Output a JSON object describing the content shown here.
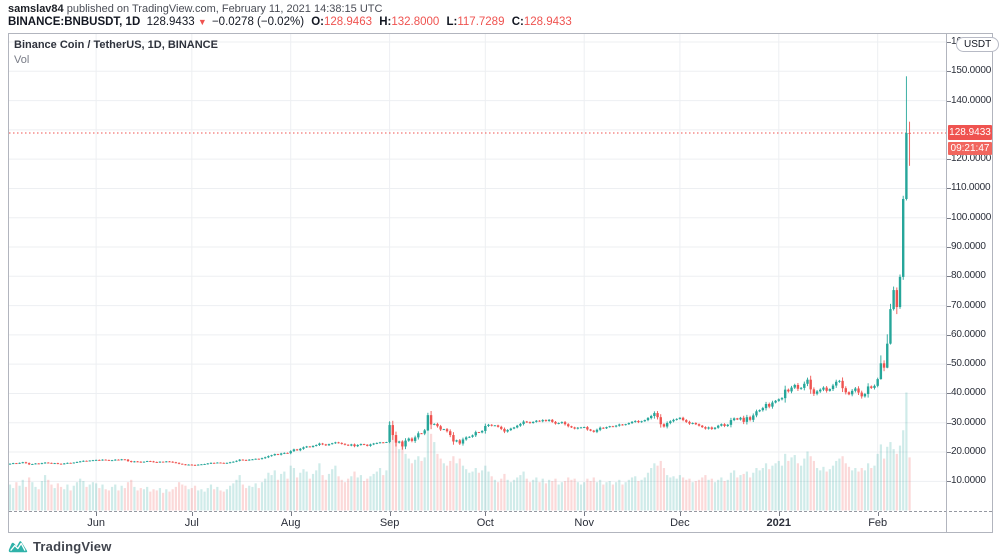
{
  "header": {
    "author": "samslav84",
    "published_text": " published on TradingView.com, February 11, 2021 14:38:15 UTC",
    "symbol": "BINANCE:BNBUSDT, 1D",
    "last_price": "128.9433",
    "direction_icon": "▼",
    "change_text": "−0.0278 (−0.02%)",
    "o_label": "O:",
    "o_value": "128.9463",
    "h_label": "H:",
    "h_value": "132.8000",
    "l_label": "L:",
    "l_value": "117.7289",
    "c_label": "C:",
    "c_value": "128.9433"
  },
  "chart": {
    "pane_title": "Binance Coin / TetherUS, 1D, BINANCE",
    "indicator_label": "Vol",
    "price_axis": {
      "unit_button": "USDT",
      "last_price_label": "128.9433",
      "countdown_label": "09:21:47",
      "tick_labels": [
        {
          "p": 160,
          "label": "160.0000"
        },
        {
          "p": 150,
          "label": "150.0000"
        },
        {
          "p": 140,
          "label": "140.0000"
        },
        {
          "p": 120,
          "label": "120.0000"
        },
        {
          "p": 110,
          "label": "110.0000"
        },
        {
          "p": 100,
          "label": "100.0000"
        },
        {
          "p": 90,
          "label": "90.0000"
        },
        {
          "p": 80,
          "label": "80.0000"
        },
        {
          "p": 70,
          "label": "70.0000"
        },
        {
          "p": 60,
          "label": "60.0000"
        },
        {
          "p": 50,
          "label": "50.0000"
        },
        {
          "p": 40,
          "label": "40.0000"
        },
        {
          "p": 30,
          "label": "30.0000"
        },
        {
          "p": 20,
          "label": "20.0000"
        },
        {
          "p": 10,
          "label": "10.0000"
        }
      ],
      "grid_prices": [
        10,
        20,
        30,
        40,
        50,
        60,
        70,
        80,
        90,
        100,
        110,
        120,
        130,
        140,
        150,
        160
      ]
    },
    "time_axis": {
      "ticks": [
        {
          "label": "Jun",
          "day": 27,
          "bold": false
        },
        {
          "label": "Jul",
          "day": 57,
          "bold": false
        },
        {
          "label": "Aug",
          "day": 88,
          "bold": false
        },
        {
          "label": "Sep",
          "day": 119,
          "bold": false
        },
        {
          "label": "Oct",
          "day": 149,
          "bold": false
        },
        {
          "label": "Nov",
          "day": 180,
          "bold": false
        },
        {
          "label": "Dec",
          "day": 210,
          "bold": false
        },
        {
          "label": "2021",
          "day": 241,
          "bold": true
        },
        {
          "label": "Feb",
          "day": 272,
          "bold": false
        }
      ]
    },
    "watermark": "TradingView"
  },
  "colors": {
    "up": "#26a69a",
    "down": "#ef5350",
    "vol_up": "rgba(38,166,154,0.22)",
    "vol_down": "rgba(239,83,80,0.22)",
    "grid": "#edeff2",
    "price_line": "#ef5350",
    "badge_bg": "#ef5350"
  },
  "chart_data": {
    "type": "candlestick",
    "symbol": "BINANCE:BNBUSDT",
    "title": "Binance Coin / TetherUS, 1D, BINANCE",
    "interval": "1D",
    "currency": "USDT",
    "date_start": "2020-05-05",
    "date_end": "2021-02-11",
    "visible_price_range": [
      0,
      163
    ],
    "volume_units": "relative_0_100",
    "last_candle": {
      "open": 128.9463,
      "high": 132.8,
      "low": 117.7289,
      "close": 128.9433,
      "change": -0.0278,
      "change_pct": "-0.02%"
    },
    "countdown_to_close": "09:21:47",
    "days": [
      [
        16.0,
        22
      ],
      [
        16.2,
        19
      ],
      [
        16.1,
        24
      ],
      [
        16.3,
        21
      ],
      [
        16.5,
        26
      ],
      [
        16.2,
        20
      ],
      [
        15.8,
        28
      ],
      [
        15.9,
        24
      ],
      [
        16.1,
        20
      ],
      [
        16.0,
        18
      ],
      [
        16.2,
        25
      ],
      [
        16.4,
        30
      ],
      [
        16.3,
        26
      ],
      [
        16.1,
        22
      ],
      [
        16.2,
        19
      ],
      [
        16.0,
        23
      ],
      [
        15.9,
        20
      ],
      [
        16.1,
        18
      ],
      [
        16.3,
        22
      ],
      [
        16.2,
        17
      ],
      [
        16.4,
        21
      ],
      [
        16.6,
        24
      ],
      [
        16.8,
        27
      ],
      [
        17.0,
        25
      ],
      [
        16.9,
        20
      ],
      [
        17.1,
        22
      ],
      [
        17.2,
        24
      ],
      [
        17.3,
        23
      ],
      [
        17.2,
        19
      ],
      [
        17.4,
        22
      ],
      [
        17.3,
        18
      ],
      [
        17.1,
        17
      ],
      [
        17.2,
        20
      ],
      [
        17.4,
        22
      ],
      [
        17.3,
        17
      ],
      [
        17.5,
        21
      ],
      [
        17.4,
        19
      ],
      [
        16.9,
        24
      ],
      [
        16.6,
        26
      ],
      [
        16.8,
        20
      ],
      [
        16.7,
        17
      ],
      [
        16.5,
        19
      ],
      [
        16.7,
        18
      ],
      [
        16.9,
        20
      ],
      [
        16.8,
        16
      ],
      [
        16.6,
        18
      ],
      [
        16.5,
        17
      ],
      [
        16.7,
        19
      ],
      [
        16.6,
        15
      ],
      [
        16.8,
        18
      ],
      [
        16.7,
        16
      ],
      [
        16.5,
        18
      ],
      [
        16.3,
        20
      ],
      [
        16.0,
        24
      ],
      [
        15.8,
        22
      ],
      [
        15.6,
        21
      ],
      [
        15.7,
        18
      ],
      [
        15.6,
        19
      ],
      [
        15.5,
        21
      ],
      [
        15.7,
        17
      ],
      [
        15.8,
        18
      ],
      [
        15.9,
        16
      ],
      [
        16.1,
        19
      ],
      [
        16.3,
        22
      ],
      [
        16.2,
        18
      ],
      [
        16.4,
        20
      ],
      [
        16.3,
        17
      ],
      [
        16.2,
        16
      ],
      [
        16.3,
        18
      ],
      [
        16.5,
        21
      ],
      [
        16.7,
        23
      ],
      [
        17.0,
        26
      ],
      [
        17.4,
        30
      ],
      [
        17.3,
        22
      ],
      [
        17.2,
        19
      ],
      [
        17.4,
        21
      ],
      [
        17.5,
        20
      ],
      [
        17.7,
        23
      ],
      [
        17.6,
        19
      ],
      [
        17.9,
        24
      ],
      [
        18.2,
        27
      ],
      [
        18.6,
        32
      ],
      [
        18.9,
        30
      ],
      [
        19.3,
        34
      ],
      [
        19.1,
        26
      ],
      [
        19.5,
        31
      ],
      [
        19.7,
        33
      ],
      [
        19.6,
        27
      ],
      [
        20.3,
        38
      ],
      [
        20.9,
        36
      ],
      [
        20.6,
        28
      ],
      [
        21.1,
        32
      ],
      [
        21.6,
        35
      ],
      [
        21.9,
        33
      ],
      [
        21.7,
        27
      ],
      [
        22.1,
        31
      ],
      [
        22.4,
        34
      ],
      [
        22.9,
        40
      ],
      [
        22.6,
        30
      ],
      [
        22.3,
        26
      ],
      [
        22.7,
        31
      ],
      [
        23.0,
        35
      ],
      [
        23.3,
        38
      ],
      [
        23.1,
        29
      ],
      [
        22.8,
        26
      ],
      [
        22.5,
        24
      ],
      [
        22.2,
        27
      ],
      [
        22.6,
        29
      ],
      [
        22.0,
        33
      ],
      [
        22.4,
        28
      ],
      [
        22.7,
        30
      ],
      [
        22.5,
        25
      ],
      [
        22.1,
        27
      ],
      [
        22.6,
        29
      ],
      [
        22.9,
        31
      ],
      [
        23.1,
        33
      ],
      [
        23.3,
        36
      ],
      [
        23.2,
        30
      ],
      [
        23.4,
        34
      ],
      [
        29.2,
        75
      ],
      [
        25.8,
        68
      ],
      [
        23.2,
        60
      ],
      [
        23.6,
        52
      ],
      [
        21.9,
        56
      ],
      [
        23.9,
        48
      ],
      [
        24.6,
        44
      ],
      [
        23.8,
        40
      ],
      [
        25.0,
        43
      ],
      [
        26.4,
        46
      ],
      [
        26.3,
        42
      ],
      [
        27.4,
        45
      ],
      [
        32.6,
        72
      ],
      [
        29.4,
        65
      ],
      [
        29.6,
        58
      ],
      [
        28.8,
        48
      ],
      [
        27.7,
        44
      ],
      [
        27.8,
        40
      ],
      [
        27.1,
        38
      ],
      [
        25.8,
        42
      ],
      [
        23.6,
        46
      ],
      [
        24.0,
        40
      ],
      [
        22.9,
        44
      ],
      [
        24.3,
        38
      ],
      [
        25.0,
        35
      ],
      [
        25.2,
        32
      ],
      [
        25.7,
        33
      ],
      [
        26.8,
        36
      ],
      [
        26.7,
        32
      ],
      [
        27.2,
        34
      ],
      [
        28.9,
        38
      ],
      [
        29.3,
        33
      ],
      [
        29.0,
        29
      ],
      [
        29.1,
        26
      ],
      [
        28.6,
        24
      ],
      [
        27.9,
        27
      ],
      [
        27.0,
        31
      ],
      [
        27.5,
        26
      ],
      [
        28.0,
        24
      ],
      [
        28.4,
        26
      ],
      [
        29.0,
        28
      ],
      [
        29.6,
        30
      ],
      [
        30.4,
        33
      ],
      [
        30.2,
        27
      ],
      [
        29.9,
        24
      ],
      [
        30.3,
        26
      ],
      [
        30.7,
        28
      ],
      [
        30.5,
        24
      ],
      [
        30.9,
        27
      ],
      [
        30.6,
        23
      ],
      [
        31.0,
        26
      ],
      [
        30.3,
        25
      ],
      [
        29.7,
        27
      ],
      [
        29.9,
        22
      ],
      [
        30.2,
        24
      ],
      [
        29.5,
        25
      ],
      [
        28.8,
        28
      ],
      [
        28.4,
        26
      ],
      [
        28.0,
        27
      ],
      [
        28.3,
        24
      ],
      [
        28.4,
        22
      ],
      [
        28.5,
        24
      ],
      [
        27.7,
        27
      ],
      [
        27.3,
        25
      ],
      [
        26.9,
        28
      ],
      [
        27.6,
        24
      ],
      [
        28.3,
        26
      ],
      [
        28.1,
        22
      ],
      [
        28.5,
        24
      ],
      [
        28.8,
        25
      ],
      [
        28.7,
        22
      ],
      [
        29.0,
        24
      ],
      [
        29.4,
        26
      ],
      [
        29.2,
        22
      ],
      [
        29.5,
        24
      ],
      [
        29.9,
        26
      ],
      [
        30.3,
        28
      ],
      [
        30.6,
        29
      ],
      [
        30.2,
        25
      ],
      [
        30.5,
        26
      ],
      [
        30.9,
        28
      ],
      [
        31.6,
        32
      ],
      [
        32.3,
        36
      ],
      [
        33.3,
        40
      ],
      [
        31.9,
        38
      ],
      [
        29.5,
        42
      ],
      [
        28.7,
        36
      ],
      [
        29.9,
        30
      ],
      [
        30.5,
        28
      ],
      [
        31.0,
        29
      ],
      [
        31.3,
        27
      ],
      [
        31.7,
        30
      ],
      [
        30.9,
        28
      ],
      [
        30.3,
        26
      ],
      [
        29.7,
        27
      ],
      [
        29.9,
        24
      ],
      [
        29.5,
        25
      ],
      [
        29.0,
        26
      ],
      [
        28.5,
        28
      ],
      [
        28.0,
        30
      ],
      [
        28.4,
        26
      ],
      [
        27.9,
        27
      ],
      [
        28.3,
        24
      ],
      [
        29.0,
        26
      ],
      [
        29.5,
        28
      ],
      [
        28.9,
        25
      ],
      [
        29.3,
        26
      ],
      [
        30.9,
        32
      ],
      [
        31.5,
        34
      ],
      [
        31.1,
        28
      ],
      [
        31.7,
        30
      ],
      [
        30.3,
        31
      ],
      [
        31.9,
        33
      ],
      [
        31.0,
        28
      ],
      [
        32.5,
        32
      ],
      [
        33.9,
        36
      ],
      [
        34.3,
        34
      ],
      [
        35.0,
        36
      ],
      [
        36.4,
        40
      ],
      [
        35.5,
        35
      ],
      [
        36.9,
        38
      ],
      [
        37.5,
        40
      ],
      [
        38.0,
        42
      ],
      [
        38.4,
        38
      ],
      [
        41.3,
        48
      ],
      [
        40.7,
        42
      ],
      [
        42.0,
        45
      ],
      [
        42.9,
        47
      ],
      [
        41.6,
        40
      ],
      [
        41.9,
        38
      ],
      [
        43.3,
        44
      ],
      [
        44.7,
        50
      ],
      [
        41.4,
        46
      ],
      [
        39.9,
        42
      ],
      [
        40.7,
        36
      ],
      [
        41.3,
        34
      ],
      [
        42.0,
        37
      ],
      [
        40.9,
        33
      ],
      [
        41.5,
        35
      ],
      [
        42.7,
        38
      ],
      [
        44.0,
        42
      ],
      [
        44.3,
        44
      ],
      [
        41.8,
        46
      ],
      [
        40.4,
        40
      ],
      [
        39.7,
        37
      ],
      [
        40.9,
        34
      ],
      [
        41.7,
        36
      ],
      [
        40.3,
        33
      ],
      [
        39.0,
        36
      ],
      [
        39.8,
        34
      ],
      [
        42.4,
        40
      ],
      [
        41.9,
        36
      ],
      [
        42.6,
        38
      ],
      [
        44.9,
        48
      ],
      [
        50.3,
        56
      ],
      [
        48.8,
        44
      ],
      [
        57.0,
        54
      ],
      [
        68.8,
        58
      ],
      [
        75.3,
        52
      ],
      [
        69.5,
        48
      ],
      [
        79.8,
        55
      ],
      [
        106.4,
        68
      ],
      [
        128.95,
        100
      ],
      [
        128.9433,
        45
      ]
    ],
    "wick_overrides": {
      "119": [
        30.5,
        23.0
      ],
      "123": [
        24.0,
        20.8
      ],
      "131": [
        33.4,
        27.2
      ],
      "202": [
        33.9,
        31.4
      ],
      "272": [
        45.4,
        42.1
      ],
      "273": [
        53.0,
        44.7
      ],
      "274": [
        51.3,
        47.6
      ],
      "275": [
        60.2,
        48.6
      ],
      "276": [
        70.6,
        56.7
      ],
      "277": [
        76.5,
        68.3
      ],
      "278": [
        76.2,
        67.1
      ],
      "279": [
        80.6,
        68.9
      ],
      "280": [
        107.5,
        78.8
      ],
      "281": [
        148.3,
        105.9
      ],
      "282": [
        132.8,
        117.7289
      ]
    }
  }
}
